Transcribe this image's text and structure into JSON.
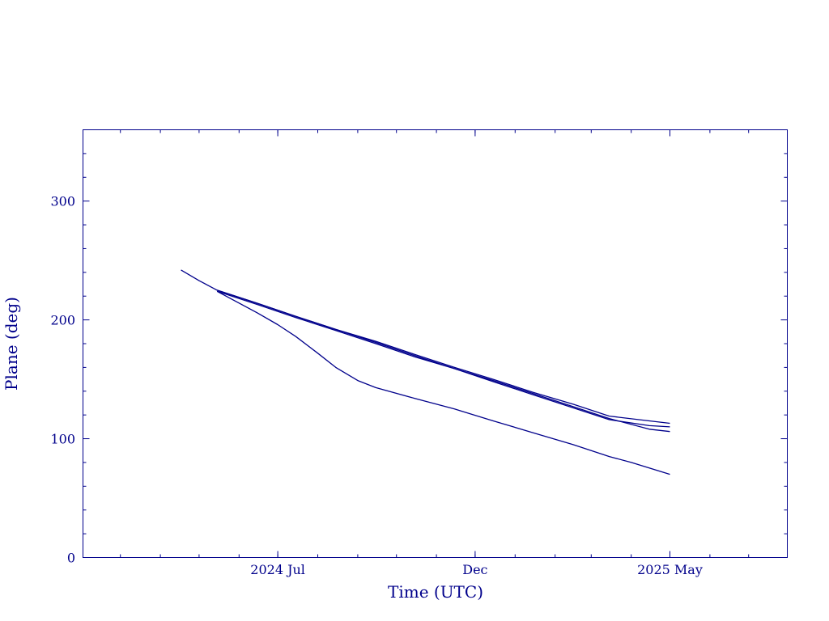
{
  "colors": {
    "axis": "#00008b",
    "series": "#00008b",
    "background": "#ffffff"
  },
  "chart_data": {
    "type": "line",
    "xlabel": "Time (UTC)",
    "ylabel": "Plane (deg)",
    "xlim": [
      "2024-02-01",
      "2025-07-31"
    ],
    "ylim": [
      0,
      360
    ],
    "x_ticks": [
      {
        "date": "2024-07-01",
        "label": "2024 Jul"
      },
      {
        "date": "2024-12-01",
        "label": "Dec"
      },
      {
        "date": "2025-05-01",
        "label": "2025 May"
      }
    ],
    "y_ticks": [
      {
        "value": 0,
        "label": "0"
      },
      {
        "value": 100,
        "label": "100"
      },
      {
        "value": 200,
        "label": "200"
      },
      {
        "value": 300,
        "label": "300"
      }
    ],
    "grid": false,
    "series": [
      {
        "x": [
          "2024-04-17",
          "2024-05-01",
          "2024-05-15",
          "2024-06-15",
          "2024-07-15",
          "2024-08-15",
          "2024-09-15",
          "2024-10-15",
          "2024-11-15",
          "2024-12-15",
          "2025-01-15",
          "2025-02-15",
          "2025-03-15",
          "2025-04-15",
          "2025-05-01"
        ],
        "y": [
          242,
          233,
          225,
          214,
          203,
          192,
          181,
          170,
          159,
          149,
          138,
          127,
          117,
          108,
          106
        ]
      },
      {
        "x": [
          "2024-05-15",
          "2024-06-15",
          "2024-07-15",
          "2024-08-15",
          "2024-09-15",
          "2024-10-15",
          "2024-11-15",
          "2024-12-15",
          "2025-01-15",
          "2025-02-15",
          "2025-03-15",
          "2025-04-15",
          "2025-05-01"
        ],
        "y": [
          224,
          213,
          202,
          191,
          180,
          169,
          159,
          148,
          137,
          126,
          116,
          111,
          110
        ]
      },
      {
        "x": [
          "2024-05-15",
          "2024-06-15",
          "2024-07-15",
          "2024-08-15",
          "2024-09-15",
          "2024-10-15",
          "2024-11-15",
          "2024-12-15",
          "2025-01-15",
          "2025-02-15",
          "2025-03-15",
          "2025-04-15",
          "2025-05-01"
        ],
        "y": [
          225,
          214,
          203,
          192,
          182,
          171,
          160,
          150,
          139,
          129,
          119,
          115,
          113
        ]
      },
      {
        "x": [
          "2024-05-15",
          "2024-06-15",
          "2024-07-01",
          "2024-07-15",
          "2024-08-01",
          "2024-08-15",
          "2024-09-01",
          "2024-09-15",
          "2024-10-15",
          "2024-11-15",
          "2024-12-15",
          "2025-01-15",
          "2025-02-15",
          "2025-03-15",
          "2025-04-01",
          "2025-05-01"
        ],
        "y": [
          224,
          206,
          196,
          186,
          172,
          160,
          149,
          143,
          134,
          125,
          115,
          105,
          95,
          85,
          80,
          70
        ]
      }
    ]
  }
}
